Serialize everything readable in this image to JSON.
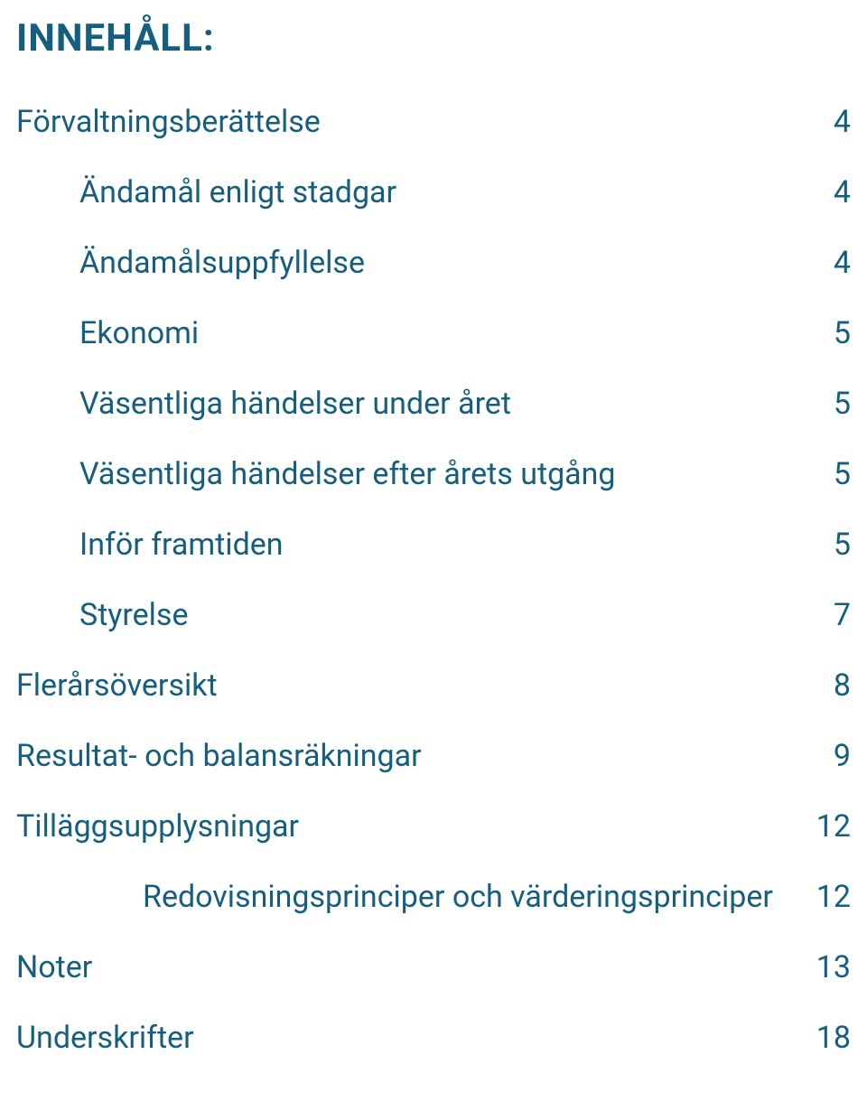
{
  "styling": {
    "heading_color": "#155e7d",
    "text_color": "#155e7d",
    "heading_fontsize": 42,
    "entry_fontsize": 34,
    "row_spacing": 78,
    "background_color": "#ffffff"
  },
  "heading": "INNEHÅLL:",
  "entries": [
    {
      "label": "Förvaltningsberättelse",
      "page": "4",
      "level": 0
    },
    {
      "label": "Ändamål enligt stadgar",
      "page": "4",
      "level": 1
    },
    {
      "label": "Ändamålsuppfyllelse",
      "page": "4",
      "level": 1
    },
    {
      "label": "Ekonomi",
      "page": "5",
      "level": 1
    },
    {
      "label": "Väsentliga händelser under året",
      "page": "5",
      "level": 1
    },
    {
      "label": "Väsentliga händelser efter årets utgång",
      "page": "5",
      "level": 1
    },
    {
      "label": "Inför framtiden",
      "page": "5",
      "level": 1
    },
    {
      "label": "Styrelse",
      "page": "7",
      "level": 1
    },
    {
      "label": "Flerårsöversikt",
      "page": "8",
      "level": 0
    },
    {
      "label": "Resultat- och balansräkningar",
      "page": "9",
      "level": 0
    },
    {
      "label": "Tilläggsupplysningar",
      "page": "12",
      "level": 0
    },
    {
      "label": "Redovisningsprinciper och värderingsprinciper",
      "page": "12",
      "level": 2
    },
    {
      "label": "Noter",
      "page": "13",
      "level": 0
    },
    {
      "label": "Underskrifter",
      "page": "18",
      "level": 0
    }
  ]
}
